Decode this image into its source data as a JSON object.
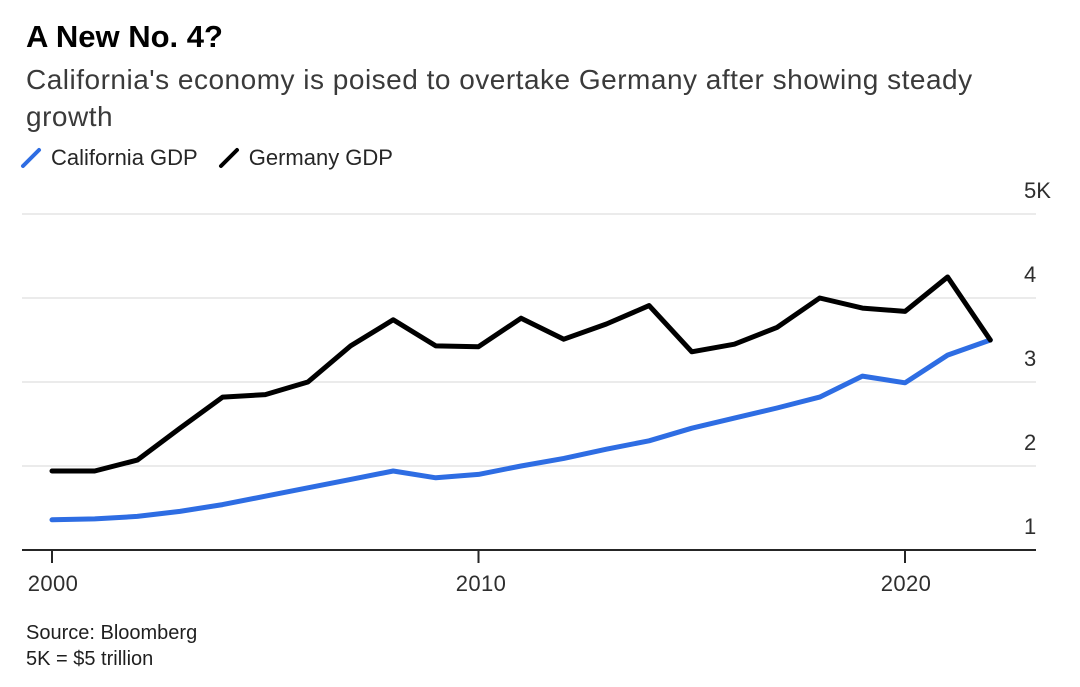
{
  "header": {
    "title": "A New No. 4?",
    "subtitle_line1": "California's economy is poised to overtake Germany after showing steady",
    "subtitle_line2": "growth"
  },
  "legend": [
    {
      "label": "California GDP",
      "color": "#2e6de3"
    },
    {
      "label": "Germany GDP",
      "color": "#000000"
    }
  ],
  "footer": {
    "source": "Source: Bloomberg",
    "note": "5K = $5 trillion"
  },
  "chart_data": {
    "type": "line",
    "title": "A New No. 4?",
    "subtitle": "California's economy is poised to overtake Germany after showing steady growth",
    "x": [
      2000,
      2001,
      2002,
      2003,
      2004,
      2005,
      2006,
      2007,
      2008,
      2009,
      2010,
      2011,
      2012,
      2013,
      2014,
      2015,
      2016,
      2017,
      2018,
      2019,
      2020,
      2021,
      2022
    ],
    "series": [
      {
        "name": "California GDP",
        "color": "#2e6de3",
        "values": [
          1.36,
          1.37,
          1.4,
          1.46,
          1.54,
          1.64,
          1.74,
          1.84,
          1.94,
          1.86,
          1.9,
          2.0,
          2.09,
          2.2,
          2.3,
          2.45,
          2.57,
          2.69,
          2.82,
          3.07,
          2.99,
          3.32,
          3.5
        ]
      },
      {
        "name": "Germany GDP",
        "color": "#000000",
        "values": [
          1.94,
          1.94,
          2.07,
          2.45,
          2.82,
          2.85,
          3.0,
          3.43,
          3.74,
          3.43,
          3.42,
          3.76,
          3.51,
          3.69,
          3.91,
          3.36,
          3.45,
          3.65,
          4.0,
          3.88,
          3.84,
          4.25,
          3.5
        ]
      }
    ],
    "xticks": [
      2000,
      2010,
      2020
    ],
    "yticks": [
      {
        "value": 5,
        "label": "5K"
      },
      {
        "value": 4,
        "label": "4"
      },
      {
        "value": 3,
        "label": "3"
      },
      {
        "value": 2,
        "label": "2"
      },
      {
        "value": 1,
        "label": "1"
      }
    ],
    "ylim": [
      1,
      5
    ],
    "xlabel": "",
    "ylabel": "",
    "grid": true,
    "legend_position": "top-left",
    "unit_note": "5K = $5 trillion"
  }
}
